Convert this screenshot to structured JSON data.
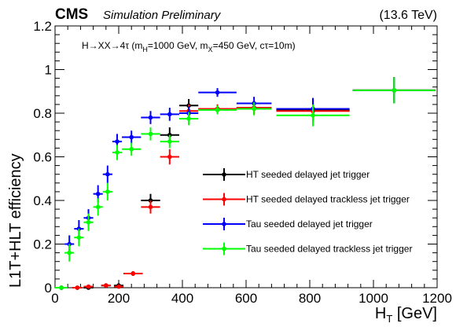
{
  "header": {
    "cms": "CMS",
    "prelim": "Simulation Preliminary",
    "energy": "(13.6 TeV)"
  },
  "chart_data": {
    "type": "scatter",
    "title": "",
    "xlabel_main": "H",
    "xlabel_sub": "T",
    "xlabel_unit": " [GeV]",
    "ylabel": "L1T+HLT efficiency",
    "xlim": [
      0,
      1200
    ],
    "ylim": [
      0,
      1.2
    ],
    "xticks": [
      0,
      200,
      400,
      600,
      800,
      1000,
      1200
    ],
    "yticks": [
      0,
      0.2,
      0.4,
      0.6,
      0.8,
      1,
      1.2
    ],
    "ytick_labels": [
      "0",
      "0.2",
      "0.4",
      "0.6",
      "0.8",
      "1",
      "1.2"
    ],
    "grid": false,
    "legend_position": "right",
    "annotation": {
      "p1": "H→XX→4τ (m",
      "p1_sub": "H",
      "p2": "=1000 GeV, m",
      "p2_sub": "X",
      "p3": "=450 GeV, cτ=10m)"
    },
    "series": [
      {
        "name": "HT seeded delayed jet trigger",
        "color": "#000000",
        "points": [
          {
            "x": 20,
            "xerr": 20,
            "y": 0.0,
            "yerr": 0.004
          },
          {
            "x": 70,
            "xerr": 15,
            "y": 0.0,
            "yerr": 0.005
          },
          {
            "x": 105,
            "xerr": 15,
            "y": 0.0,
            "yerr": 0.008
          },
          {
            "x": 160,
            "xerr": 15,
            "y": 0.01,
            "yerr": 0.01
          },
          {
            "x": 200,
            "xerr": 15,
            "y": 0.01,
            "yerr": 0.01
          },
          {
            "x": 245,
            "xerr": 30,
            "y": 0.065,
            "yerr": 0.01
          },
          {
            "x": 300,
            "xerr": 30,
            "y": 0.4,
            "yerr": 0.03
          },
          {
            "x": 360,
            "xerr": 30,
            "y": 0.7,
            "yerr": 0.035
          },
          {
            "x": 420,
            "xerr": 30,
            "y": 0.835,
            "yerr": 0.03
          },
          {
            "x": 510,
            "xerr": 60,
            "y": 0.82,
            "yerr": 0.02
          },
          {
            "x": 625,
            "xerr": 55,
            "y": 0.825,
            "yerr": 0.03
          },
          {
            "x": 810,
            "xerr": 115,
            "y": 0.815,
            "yerr": 0.05
          },
          {
            "x": 1065,
            "xerr": 130,
            "y": 0.905,
            "yerr": 0.06
          }
        ]
      },
      {
        "name": "HT seeded delayed trackless jet trigger",
        "color": "#ff0000",
        "points": [
          {
            "x": 20,
            "xerr": 20,
            "y": 0.0,
            "yerr": 0.004
          },
          {
            "x": 70,
            "xerr": 15,
            "y": 0.0,
            "yerr": 0.005
          },
          {
            "x": 105,
            "xerr": 15,
            "y": 0.005,
            "yerr": 0.008
          },
          {
            "x": 160,
            "xerr": 15,
            "y": 0.01,
            "yerr": 0.01
          },
          {
            "x": 200,
            "xerr": 15,
            "y": 0.005,
            "yerr": 0.01
          },
          {
            "x": 245,
            "xerr": 30,
            "y": 0.065,
            "yerr": 0.01
          },
          {
            "x": 300,
            "xerr": 30,
            "y": 0.37,
            "yerr": 0.03
          },
          {
            "x": 360,
            "xerr": 30,
            "y": 0.6,
            "yerr": 0.035
          },
          {
            "x": 420,
            "xerr": 30,
            "y": 0.81,
            "yerr": 0.03
          },
          {
            "x": 510,
            "xerr": 60,
            "y": 0.82,
            "yerr": 0.02
          },
          {
            "x": 625,
            "xerr": 55,
            "y": 0.825,
            "yerr": 0.03
          },
          {
            "x": 810,
            "xerr": 115,
            "y": 0.81,
            "yerr": 0.05
          },
          {
            "x": 1065,
            "xerr": 130,
            "y": 0.905,
            "yerr": 0.06
          }
        ]
      },
      {
        "name": "Tau seeded delayed jet trigger",
        "color": "#0000ff",
        "points": [
          {
            "x": 20,
            "xerr": 20,
            "y": 0.0,
            "yerr": 0.004
          },
          {
            "x": 45,
            "xerr": 15,
            "y": 0.2,
            "yerr": 0.04
          },
          {
            "x": 75,
            "xerr": 15,
            "y": 0.27,
            "yerr": 0.04
          },
          {
            "x": 105,
            "xerr": 15,
            "y": 0.32,
            "yerr": 0.04
          },
          {
            "x": 135,
            "xerr": 15,
            "y": 0.43,
            "yerr": 0.04
          },
          {
            "x": 165,
            "xerr": 15,
            "y": 0.52,
            "yerr": 0.04
          },
          {
            "x": 195,
            "xerr": 15,
            "y": 0.67,
            "yerr": 0.035
          },
          {
            "x": 240,
            "xerr": 30,
            "y": 0.69,
            "yerr": 0.03
          },
          {
            "x": 300,
            "xerr": 30,
            "y": 0.78,
            "yerr": 0.03
          },
          {
            "x": 360,
            "xerr": 30,
            "y": 0.795,
            "yerr": 0.03
          },
          {
            "x": 420,
            "xerr": 30,
            "y": 0.8,
            "yerr": 0.03
          },
          {
            "x": 510,
            "xerr": 60,
            "y": 0.895,
            "yerr": 0.02
          },
          {
            "x": 625,
            "xerr": 55,
            "y": 0.845,
            "yerr": 0.03
          },
          {
            "x": 810,
            "xerr": 115,
            "y": 0.82,
            "yerr": 0.05
          },
          {
            "x": 1065,
            "xerr": 130,
            "y": 0.905,
            "yerr": 0.06
          }
        ]
      },
      {
        "name": "Tau seeded delayed trackless jet trigger",
        "color": "#00ff00",
        "points": [
          {
            "x": 20,
            "xerr": 20,
            "y": 0.0,
            "yerr": 0.004
          },
          {
            "x": 45,
            "xerr": 15,
            "y": 0.16,
            "yerr": 0.04
          },
          {
            "x": 75,
            "xerr": 15,
            "y": 0.23,
            "yerr": 0.04
          },
          {
            "x": 105,
            "xerr": 15,
            "y": 0.3,
            "yerr": 0.04
          },
          {
            "x": 135,
            "xerr": 15,
            "y": 0.37,
            "yerr": 0.04
          },
          {
            "x": 165,
            "xerr": 15,
            "y": 0.44,
            "yerr": 0.04
          },
          {
            "x": 195,
            "xerr": 15,
            "y": 0.62,
            "yerr": 0.035
          },
          {
            "x": 240,
            "xerr": 30,
            "y": 0.635,
            "yerr": 0.03
          },
          {
            "x": 300,
            "xerr": 30,
            "y": 0.705,
            "yerr": 0.03
          },
          {
            "x": 360,
            "xerr": 30,
            "y": 0.67,
            "yerr": 0.03
          },
          {
            "x": 420,
            "xerr": 30,
            "y": 0.775,
            "yerr": 0.03
          },
          {
            "x": 510,
            "xerr": 60,
            "y": 0.815,
            "yerr": 0.02
          },
          {
            "x": 625,
            "xerr": 55,
            "y": 0.82,
            "yerr": 0.03
          },
          {
            "x": 810,
            "xerr": 115,
            "y": 0.79,
            "yerr": 0.05
          },
          {
            "x": 1065,
            "xerr": 130,
            "y": 0.905,
            "yerr": 0.06
          }
        ]
      }
    ]
  }
}
